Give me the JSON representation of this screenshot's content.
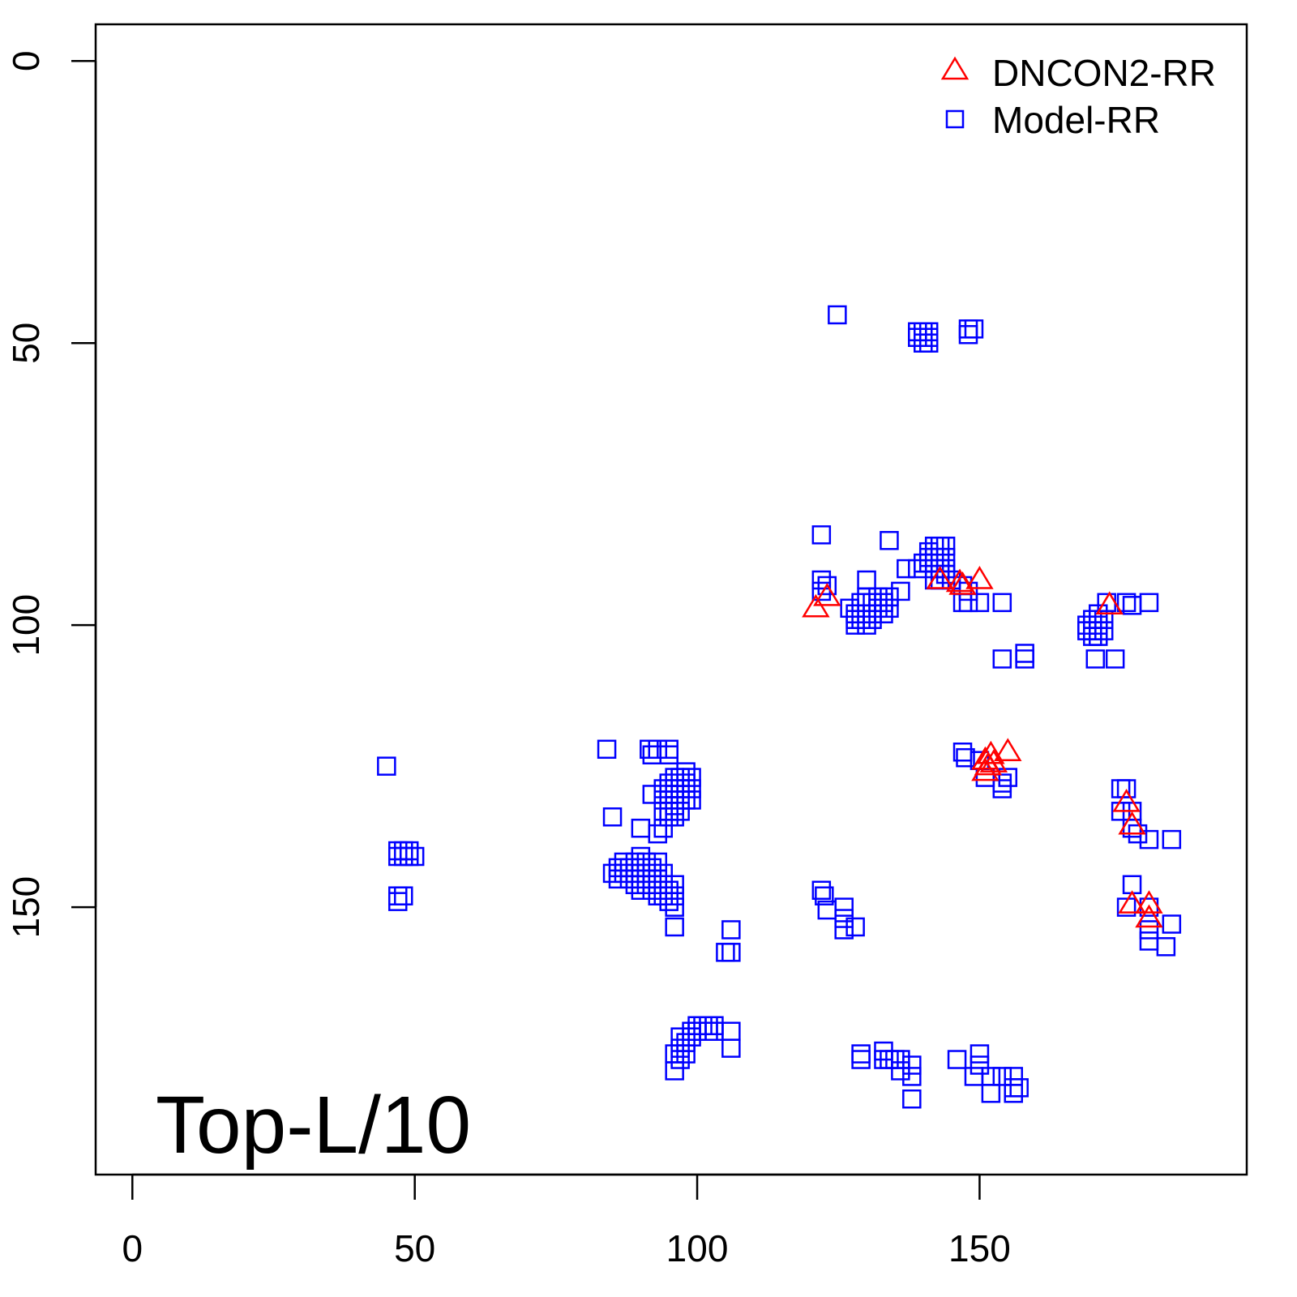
{
  "chart_data": {
    "type": "scatter",
    "title": "",
    "xlabel": "",
    "ylabel": "",
    "xlim": [
      -6.5,
      197.3
    ],
    "ylim": [
      -6.5,
      197.4
    ],
    "y_inverted": true,
    "grid": false,
    "x_ticks": [
      "0",
      "50",
      "100",
      "150"
    ],
    "y_ticks": [
      "0",
      "50",
      "100",
      "150"
    ],
    "annotation": "Top-L/10",
    "legend_position": "top-right",
    "series": [
      {
        "name": "DNCON2-RR",
        "marker": "triangle",
        "color": "#ff0000",
        "points": [
          [
            121,
            97
          ],
          [
            123,
            95
          ],
          [
            143,
            92
          ],
          [
            146.5,
            92.5
          ],
          [
            147,
            93
          ],
          [
            150,
            92
          ],
          [
            173,
            96.5
          ],
          [
            151,
            124
          ],
          [
            151.5,
            125
          ],
          [
            152,
            123
          ],
          [
            152.5,
            124.5
          ],
          [
            151,
            126
          ],
          [
            155,
            122.5
          ],
          [
            176,
            131.5
          ],
          [
            177,
            135.5
          ],
          [
            177,
            149.5
          ],
          [
            180,
            149.5
          ],
          [
            180,
            152
          ]
        ]
      },
      {
        "name": "Model-RR",
        "marker": "square",
        "color": "#0000ff",
        "points": [
          [
            124.8,
            45
          ],
          [
            139,
            48
          ],
          [
            140,
            48
          ],
          [
            141,
            48
          ],
          [
            139,
            49
          ],
          [
            140,
            49
          ],
          [
            141,
            49
          ],
          [
            140,
            50
          ],
          [
            141,
            50
          ],
          [
            148,
            47.5
          ],
          [
            149,
            47.5
          ],
          [
            148,
            48.5
          ],
          [
            122,
            84
          ],
          [
            134,
            85
          ],
          [
            141,
            87
          ],
          [
            142,
            86
          ],
          [
            143,
            86
          ],
          [
            144,
            86
          ],
          [
            141,
            88
          ],
          [
            142,
            88
          ],
          [
            143,
            88
          ],
          [
            144,
            88
          ],
          [
            140,
            89
          ],
          [
            141,
            89
          ],
          [
            142,
            90
          ],
          [
            143,
            90
          ],
          [
            144,
            90
          ],
          [
            139,
            90
          ],
          [
            142,
            92
          ],
          [
            143,
            92
          ],
          [
            144,
            91
          ],
          [
            145,
            92
          ],
          [
            122,
            92
          ],
          [
            123,
            93
          ],
          [
            122,
            94
          ],
          [
            130,
            92
          ],
          [
            137,
            90
          ],
          [
            136,
            94
          ],
          [
            127,
            97
          ],
          [
            128,
            98
          ],
          [
            129,
            96
          ],
          [
            130,
            95
          ],
          [
            131,
            96
          ],
          [
            132,
            95
          ],
          [
            133,
            96
          ],
          [
            134,
            95
          ],
          [
            128,
            99
          ],
          [
            129,
            99
          ],
          [
            130,
            98
          ],
          [
            131,
            98
          ],
          [
            132,
            97
          ],
          [
            133,
            98
          ],
          [
            134,
            97
          ],
          [
            131,
            99
          ],
          [
            130,
            100
          ],
          [
            128,
            100
          ],
          [
            147,
            93
          ],
          [
            148,
            94
          ],
          [
            147,
            96
          ],
          [
            148,
            96
          ],
          [
            150,
            96
          ],
          [
            154,
            96
          ],
          [
            154,
            106
          ],
          [
            158,
            105
          ],
          [
            158,
            106
          ],
          [
            169,
            100
          ],
          [
            170,
            99
          ],
          [
            171,
            100
          ],
          [
            172,
            99
          ],
          [
            169,
            101
          ],
          [
            170,
            101
          ],
          [
            171,
            102
          ],
          [
            170,
            102
          ],
          [
            172,
            101
          ],
          [
            171,
            98
          ],
          [
            172.5,
            96
          ],
          [
            176,
            96
          ],
          [
            177,
            96.5
          ],
          [
            180,
            96
          ],
          [
            170.5,
            106
          ],
          [
            174,
            106
          ],
          [
            147,
            122.5
          ],
          [
            147.5,
            123.5
          ],
          [
            150,
            124
          ],
          [
            151,
            127
          ],
          [
            154,
            128
          ],
          [
            155,
            127
          ],
          [
            154,
            129
          ],
          [
            175,
            129
          ],
          [
            176,
            129
          ],
          [
            175,
            133
          ],
          [
            177,
            133
          ],
          [
            177,
            136
          ],
          [
            178,
            137
          ],
          [
            180,
            138
          ],
          [
            184,
            138
          ],
          [
            177,
            146
          ],
          [
            176,
            150
          ],
          [
            180,
            150
          ],
          [
            180,
            154
          ],
          [
            180,
            156
          ],
          [
            184,
            153
          ],
          [
            183,
            157
          ],
          [
            45,
            125
          ],
          [
            47,
            140
          ],
          [
            48,
            140
          ],
          [
            49,
            140
          ],
          [
            48,
            141
          ],
          [
            49,
            141
          ],
          [
            50,
            141
          ],
          [
            47,
            141
          ],
          [
            47,
            148
          ],
          [
            48,
            148
          ],
          [
            47,
            149
          ],
          [
            84,
            122
          ],
          [
            91.5,
            122
          ],
          [
            92,
            123
          ],
          [
            93,
            122
          ],
          [
            95,
            122
          ],
          [
            95,
            123
          ],
          [
            85,
            134
          ],
          [
            92,
            130
          ],
          [
            94,
            129
          ],
          [
            95,
            128
          ],
          [
            96,
            127
          ],
          [
            97,
            127
          ],
          [
            98,
            126
          ],
          [
            99,
            127
          ],
          [
            94,
            131
          ],
          [
            95,
            130
          ],
          [
            96,
            129
          ],
          [
            97,
            129
          ],
          [
            98,
            128
          ],
          [
            99,
            129
          ],
          [
            94,
            133
          ],
          [
            95,
            133
          ],
          [
            96,
            132
          ],
          [
            97,
            131
          ],
          [
            98,
            131
          ],
          [
            95,
            134
          ],
          [
            96,
            134
          ],
          [
            97,
            133
          ],
          [
            99,
            131
          ],
          [
            90,
            136
          ],
          [
            93,
            137
          ],
          [
            94,
            136
          ],
          [
            85,
            144
          ],
          [
            86,
            143
          ],
          [
            87,
            142
          ],
          [
            88,
            143
          ],
          [
            89,
            142
          ],
          [
            90,
            141
          ],
          [
            91,
            142
          ],
          [
            92,
            143
          ],
          [
            93,
            142
          ],
          [
            86,
            145
          ],
          [
            87,
            144
          ],
          [
            88,
            145
          ],
          [
            89,
            144
          ],
          [
            90,
            143
          ],
          [
            91,
            144
          ],
          [
            92,
            145
          ],
          [
            93,
            145
          ],
          [
            94,
            144
          ],
          [
            89,
            146
          ],
          [
            90,
            145
          ],
          [
            91,
            146
          ],
          [
            92,
            147
          ],
          [
            93,
            148
          ],
          [
            94,
            146
          ],
          [
            95,
            147
          ],
          [
            96,
            146
          ],
          [
            94,
            148
          ],
          [
            95,
            149
          ],
          [
            96,
            148
          ],
          [
            90,
            147
          ],
          [
            96,
            150
          ],
          [
            96,
            153.5
          ],
          [
            106,
            154
          ],
          [
            105,
            158
          ],
          [
            106,
            158
          ],
          [
            122,
            147
          ],
          [
            122.5,
            148
          ],
          [
            123,
            150.5
          ],
          [
            126,
            150
          ],
          [
            126,
            152
          ],
          [
            126,
            154
          ],
          [
            128,
            153.5
          ],
          [
            96,
            176
          ],
          [
            96,
            179
          ],
          [
            97,
            175
          ],
          [
            97,
            177
          ],
          [
            98,
            174
          ],
          [
            98,
            176
          ],
          [
            99,
            172
          ],
          [
            99,
            173
          ],
          [
            100,
            171
          ],
          [
            101,
            171
          ],
          [
            102,
            171
          ],
          [
            103,
            171
          ],
          [
            100,
            172
          ],
          [
            102,
            172
          ],
          [
            103,
            172
          ],
          [
            97,
            173
          ],
          [
            106,
            172
          ],
          [
            106,
            175
          ],
          [
            129,
            176
          ],
          [
            129,
            177
          ],
          [
            133,
            175.5
          ],
          [
            133,
            177
          ],
          [
            134,
            177
          ],
          [
            135,
            177
          ],
          [
            136,
            177
          ],
          [
            136,
            179
          ],
          [
            138,
            178
          ],
          [
            138,
            180
          ],
          [
            138,
            184
          ],
          [
            146,
            177
          ],
          [
            150,
            176
          ],
          [
            150,
            178
          ],
          [
            149,
            180
          ],
          [
            152,
            180
          ],
          [
            154,
            180
          ],
          [
            152,
            183
          ],
          [
            156,
            180
          ],
          [
            156,
            182
          ],
          [
            157,
            182
          ],
          [
            156,
            183
          ]
        ]
      }
    ]
  }
}
